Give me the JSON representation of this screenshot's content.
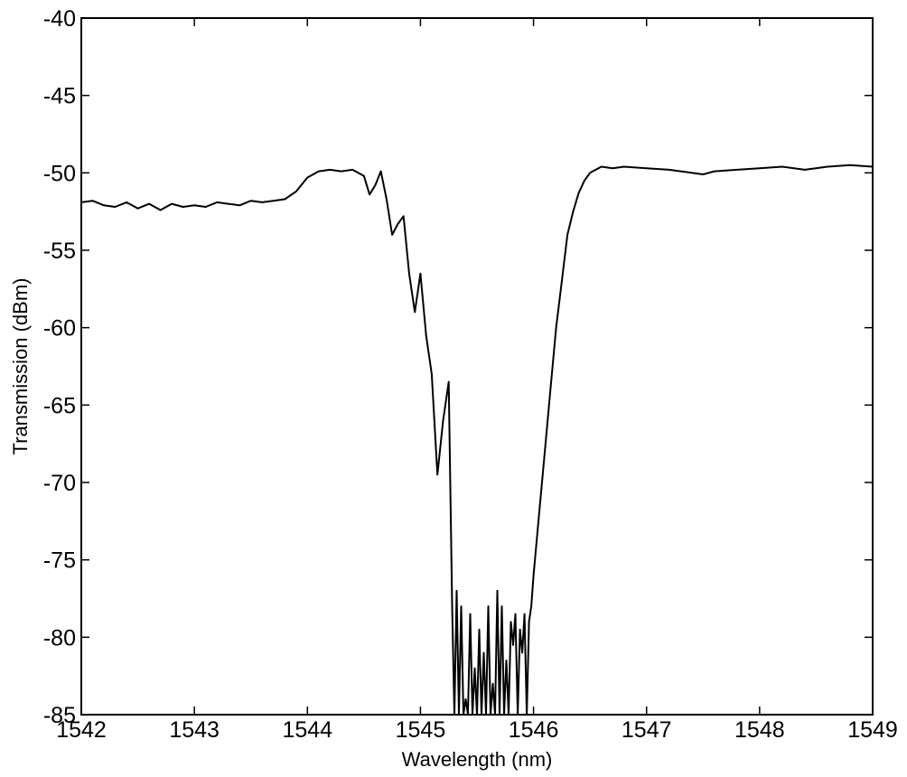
{
  "chart_data": {
    "type": "line",
    "title": "",
    "xlabel": "Wavelength (nm)",
    "ylabel": "Transmission (dBm)",
    "xlim": [
      1542,
      1549
    ],
    "ylim": [
      -85,
      -40
    ],
    "xticks": [
      1542,
      1543,
      1544,
      1545,
      1546,
      1547,
      1548,
      1549
    ],
    "yticks": [
      -40,
      -45,
      -50,
      -55,
      -60,
      -65,
      -70,
      -75,
      -80,
      -85
    ],
    "grid": false,
    "legend": "none",
    "line_color": "#000000",
    "series": [
      {
        "x": [
          1542.0,
          1542.1,
          1542.2,
          1542.3,
          1542.4,
          1542.5,
          1542.6,
          1542.7,
          1542.8,
          1542.9,
          1543.0,
          1543.1,
          1543.2,
          1543.3,
          1543.4,
          1543.5,
          1543.6,
          1543.7,
          1543.8,
          1543.9,
          1544.0,
          1544.1,
          1544.2,
          1544.3,
          1544.4,
          1544.5,
          1544.55,
          1544.6,
          1544.65,
          1544.7,
          1544.75,
          1544.8,
          1544.85,
          1544.9,
          1544.95,
          1545.0,
          1545.05,
          1545.1,
          1545.15,
          1545.2,
          1545.25,
          1545.28,
          1545.3,
          1545.32,
          1545.34,
          1545.36,
          1545.38,
          1545.4,
          1545.42,
          1545.44,
          1545.46,
          1545.48,
          1545.5,
          1545.52,
          1545.54,
          1545.56,
          1545.58,
          1545.6,
          1545.62,
          1545.64,
          1545.66,
          1545.68,
          1545.7,
          1545.72,
          1545.74,
          1545.76,
          1545.78,
          1545.8,
          1545.82,
          1545.84,
          1545.86,
          1545.88,
          1545.9,
          1545.92,
          1545.94,
          1545.96,
          1545.98,
          1546.0,
          1546.05,
          1546.1,
          1546.15,
          1546.2,
          1546.25,
          1546.3,
          1546.35,
          1546.4,
          1546.45,
          1546.5,
          1546.6,
          1546.7,
          1546.8,
          1547.0,
          1547.2,
          1547.4,
          1547.5,
          1547.6,
          1547.8,
          1548.0,
          1548.2,
          1548.4,
          1548.6,
          1548.8,
          1549.0
        ],
        "y": [
          -51.9,
          -51.8,
          -52.1,
          -52.2,
          -51.9,
          -52.3,
          -52.0,
          -52.4,
          -52.0,
          -52.2,
          -52.1,
          -52.2,
          -51.9,
          -52.0,
          -52.1,
          -51.8,
          -51.9,
          -51.8,
          -51.7,
          -51.2,
          -50.3,
          -49.9,
          -49.8,
          -49.9,
          -49.8,
          -50.2,
          -51.4,
          -50.8,
          -49.9,
          -51.7,
          -54.0,
          -53.3,
          -52.8,
          -56.5,
          -59.0,
          -56.5,
          -60.5,
          -63.0,
          -69.5,
          -66.0,
          -63.5,
          -78.0,
          -85.0,
          -77.0,
          -85.0,
          -78.0,
          -85.0,
          -84.0,
          -85.0,
          -78.5,
          -85.0,
          -82.0,
          -85.0,
          -79.5,
          -85.0,
          -81.0,
          -85.0,
          -78.0,
          -85.0,
          -83.0,
          -85.0,
          -77.0,
          -85.0,
          -78.0,
          -85.0,
          -81.5,
          -85.0,
          -79.0,
          -80.5,
          -78.5,
          -85.0,
          -79.5,
          -81.0,
          -78.5,
          -85.0,
          -79.0,
          -78.0,
          -76.0,
          -72.0,
          -68.0,
          -64.0,
          -60.0,
          -57.0,
          -54.0,
          -52.5,
          -51.3,
          -50.5,
          -50.0,
          -49.6,
          -49.7,
          -49.6,
          -49.7,
          -49.8,
          -50.0,
          -50.1,
          -49.9,
          -49.8,
          -49.7,
          -49.6,
          -49.8,
          -49.6,
          -49.5,
          -49.6
        ]
      }
    ]
  }
}
